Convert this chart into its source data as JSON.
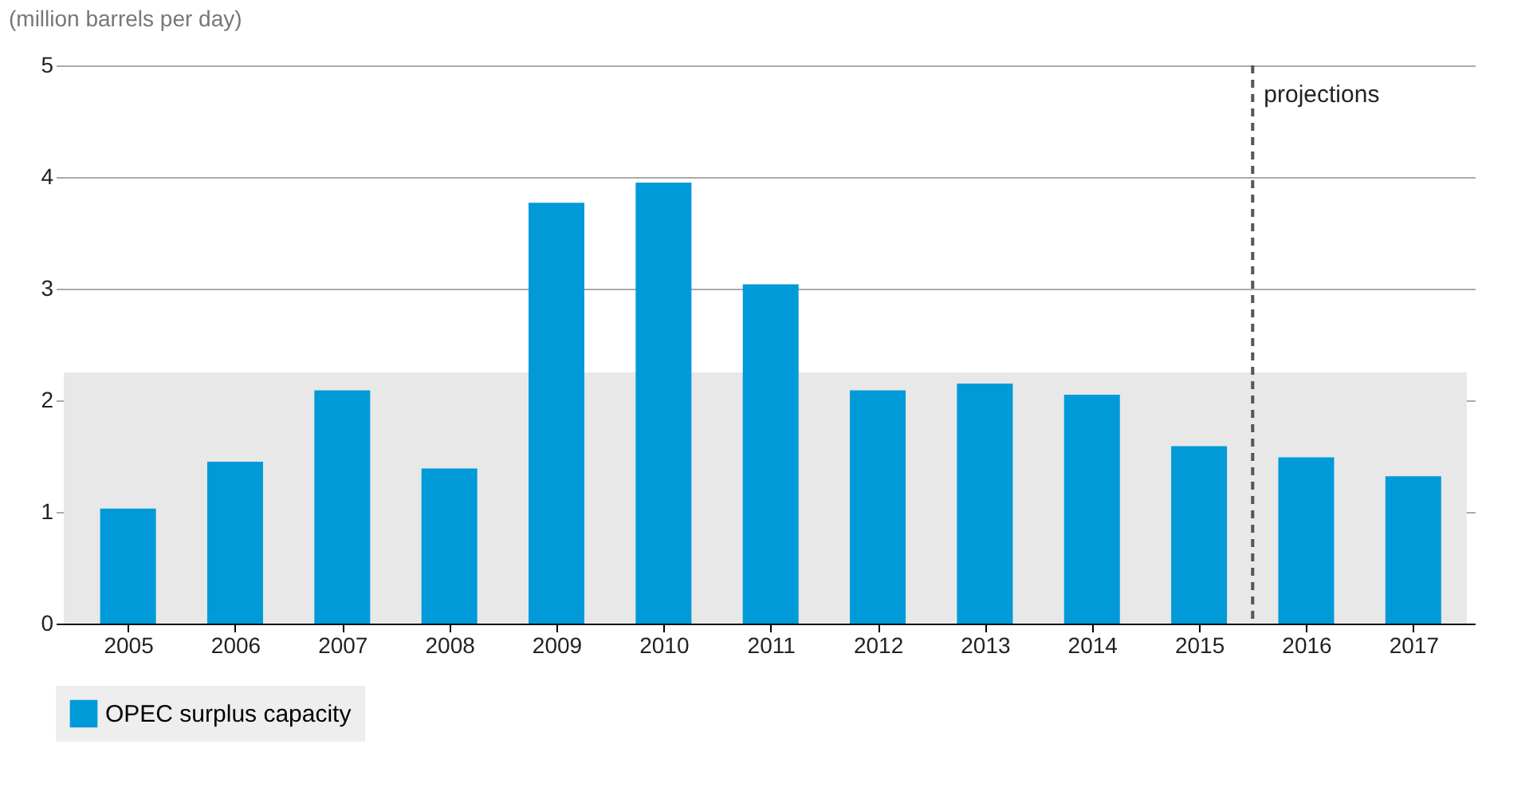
{
  "chart_data": {
    "type": "bar",
    "ylabel": "(million barrels per day)",
    "x": [
      2005,
      2006,
      2007,
      2008,
      2009,
      2010,
      2011,
      2012,
      2013,
      2014,
      2015,
      2016,
      2017
    ],
    "xlim": [
      2004.4,
      2017.5
    ],
    "xticks": [
      2005,
      2006,
      2007,
      2008,
      2009,
      2010,
      2011,
      2012,
      2013,
      2014,
      2015,
      2016,
      2017
    ],
    "series": [
      {
        "name": "OPEC surplus capacity",
        "color": "#009ad9",
        "values": [
          1.03,
          1.45,
          2.09,
          1.39,
          3.77,
          3.95,
          3.04,
          2.09,
          2.15,
          2.05,
          1.59,
          1.49,
          1.32
        ]
      }
    ],
    "ylim": [
      0,
      5
    ],
    "yticks": [
      0,
      1,
      2,
      3,
      4,
      5
    ],
    "grid": "y",
    "legend": "bottom",
    "ref_lines": [
      {
        "axis": "x",
        "value": 2015.5,
        "label": "projections",
        "color": "#555555",
        "line_style": "dashed"
      }
    ],
    "bands": [
      {
        "axis": "y",
        "from": 0,
        "to": 2.25,
        "color": "#e8e8e8"
      }
    ]
  }
}
